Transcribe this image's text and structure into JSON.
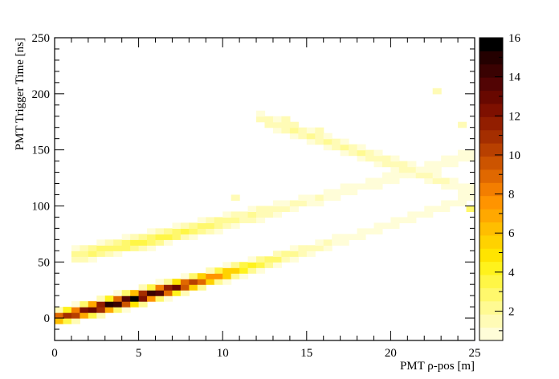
{
  "chart_data": {
    "type": "heatmap",
    "title": "",
    "xlabel": "PMT ρ-pos [m]",
    "ylabel": "PMT Trigger Time [ns]",
    "xlim": [
      0,
      25
    ],
    "ylim": [
      -20,
      250
    ],
    "x_ticks": [
      0,
      5,
      10,
      15,
      20,
      25
    ],
    "y_ticks": [
      0,
      50,
      100,
      150,
      200,
      250
    ],
    "colorbar": {
      "min": 0.5,
      "max": 16,
      "ticks": [
        2,
        4,
        6,
        8,
        10,
        12,
        14,
        16
      ],
      "palette": [
        "#fffdd8",
        "#fffbb6",
        "#fffa92",
        "#fff86c",
        "#fff646",
        "#fff21c",
        "#ffe400",
        "#ffd200",
        "#ffbe00",
        "#ffa800",
        "#ff9400",
        "#f37e00",
        "#e06800",
        "#cc5400",
        "#b84000",
        "#a42e00",
        "#921e00",
        "#7e1000",
        "#680800",
        "#520404",
        "#3a0202",
        "#240000",
        "#000000"
      ]
    },
    "bands": [
      {
        "name": "",
        "x_start": 0,
        "x_end": 25,
        "t_at_start": 0,
        "slope": 3.6,
        "curvature": 0.03,
        "half_width": 5,
        "peak": 15.5,
        "peak_x": 4.5
      },
      {
        "name": "",
        "x_start": 1,
        "x_end": 25,
        "t_at_start": 55,
        "slope": 3.1,
        "curvature": 0.03,
        "half_width": 6,
        "peak": 3.5,
        "peak_x": 6
      },
      {
        "name": "",
        "x_start": 12,
        "x_end": 25,
        "t_at_start": 180,
        "slope": -5.2,
        "curvature": 0,
        "half_width": 6,
        "peak": 2.0,
        "peak_x": 16
      }
    ],
    "sparse_cells": [
      {
        "x": 10.5,
        "y": 108,
        "v": 1.5
      },
      {
        "x": 13.5,
        "y": 178,
        "v": 1.5
      },
      {
        "x": 15.5,
        "y": 168,
        "v": 1.5
      },
      {
        "x": 22.5,
        "y": 200,
        "v": 1.2
      },
      {
        "x": 24.0,
        "y": 172,
        "v": 1.2
      },
      {
        "x": 24.5,
        "y": 95,
        "v": 3.0
      },
      {
        "x": 9.0,
        "y": 42,
        "v": 1.2
      }
    ]
  }
}
